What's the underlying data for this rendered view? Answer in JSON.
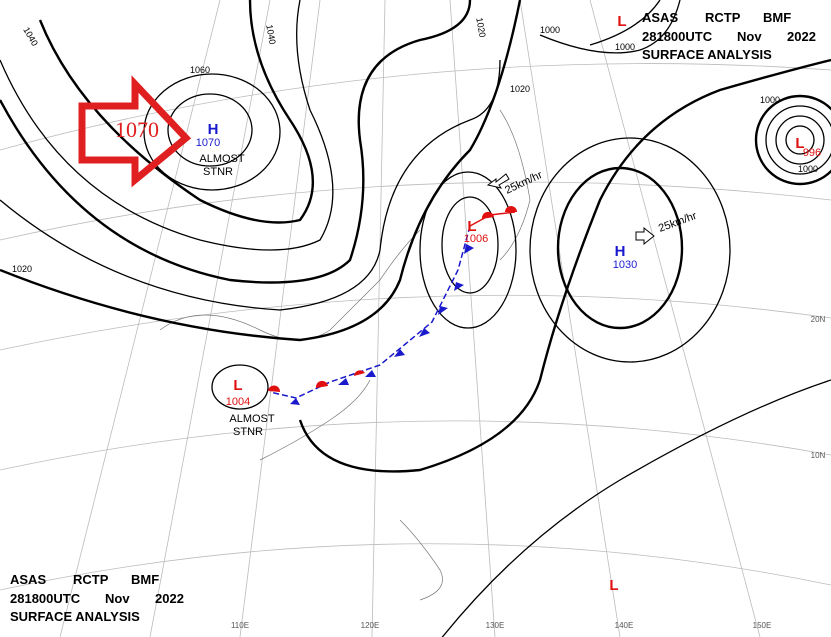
{
  "header_top": {
    "line1": [
      "ASAS",
      "RCTP",
      "BMF"
    ],
    "line2": [
      "281800UTC",
      "Nov",
      "2022"
    ],
    "line3": "SURFACE ANALYSIS"
  },
  "header_bottom": {
    "line1": [
      "ASAS",
      "RCTP",
      "BMF"
    ],
    "line2": [
      "281800UTC",
      "Nov",
      "2022"
    ],
    "line3": "SURFACE ANALYSIS"
  },
  "highlight_label": "1070",
  "systems": [
    {
      "symbol": "H",
      "pressure": 1070,
      "color": "#1a1acc",
      "note": [
        "ALMOST",
        "STNR"
      ]
    },
    {
      "symbol": "L",
      "pressure": 1006,
      "color": "#e01010",
      "motion": "25km/hr"
    },
    {
      "symbol": "H",
      "pressure": 1030,
      "color": "#1a1acc",
      "motion": "25km/hr"
    },
    {
      "symbol": "L",
      "pressure": 1004,
      "color": "#e01010",
      "note": [
        "ALMOST",
        "STNR"
      ]
    },
    {
      "symbol": "L",
      "color": "#e01010"
    },
    {
      "symbol": "L",
      "pressure": 996,
      "color": "#e01010"
    },
    {
      "symbol": "L",
      "color": "#e01010"
    }
  ],
  "isobar_labels": [
    1040,
    1040,
    1060,
    1020,
    1020,
    1000,
    1000,
    1000,
    1020,
    1000
  ],
  "longitude_labels": [
    "110E",
    "120E",
    "130E",
    "140E",
    "150E"
  ],
  "latitude_labels": [
    "20N",
    "10N"
  ]
}
